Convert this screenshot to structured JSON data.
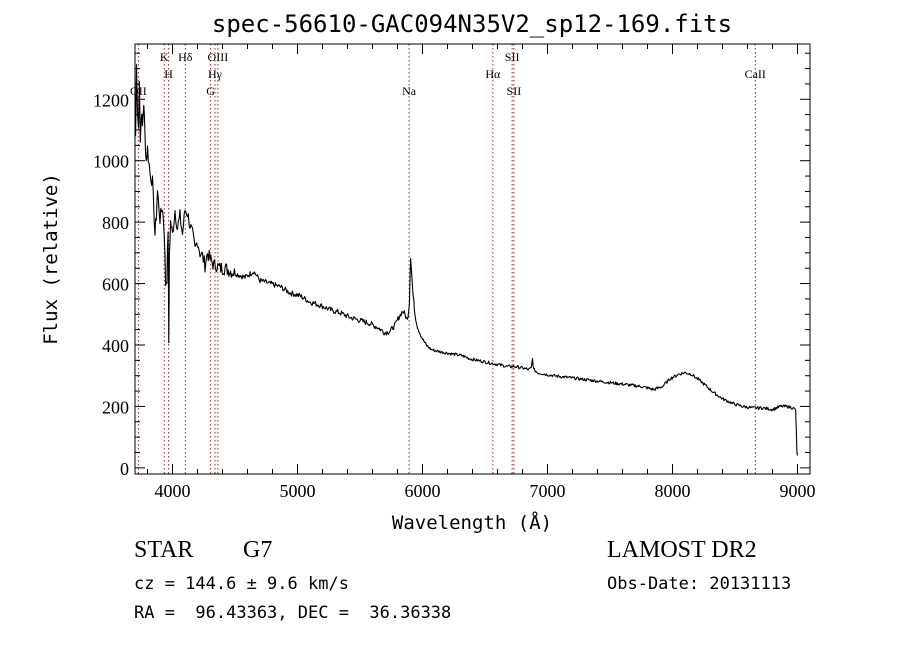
{
  "chart_data": {
    "type": "line",
    "title": "spec-56610-GAC094N35V2_sp12-169.fits",
    "xlabel": "Wavelength (Å)",
    "ylabel": "Flux (relative)",
    "xlim": [
      3700,
      9100
    ],
    "ylim": [
      -20,
      1380
    ],
    "xticks": [
      4000,
      5000,
      6000,
      7000,
      8000,
      9000
    ],
    "xtick_labels": [
      "4000",
      "5000",
      "6000",
      "7000",
      "8000",
      "9000"
    ],
    "yticks": [
      0,
      200,
      400,
      600,
      800,
      1000,
      1200
    ],
    "ytick_labels": [
      "0",
      "200",
      "400",
      "600",
      "800",
      "1000",
      "1200"
    ],
    "grid": false,
    "line_color": "#000000",
    "marker_color": "#b22222",
    "x": [
      3705,
      3712,
      3720,
      3728,
      3735,
      3742,
      3750,
      3760,
      3770,
      3780,
      3790,
      3800,
      3820,
      3840,
      3860,
      3870,
      3880,
      3900,
      3920,
      3935,
      3945,
      3955,
      3965,
      3970,
      3975,
      3985,
      4000,
      4020,
      4040,
      4060,
      4080,
      4100,
      4120,
      4140,
      4160,
      4180,
      4200,
      4220,
      4240,
      4260,
      4280,
      4300,
      4330,
      4350,
      4380,
      4420,
      4470,
      4520,
      4580,
      4650,
      4700,
      4780,
      4860,
      4940,
      5020,
      5100,
      5180,
      5260,
      5340,
      5420,
      5500,
      5580,
      5650,
      5700,
      5740,
      5780,
      5810,
      5840,
      5860,
      5880,
      5895,
      5905,
      5915,
      5925,
      5940,
      5960,
      5980,
      6000,
      6030,
      6070,
      6120,
      6180,
      6250,
      6320,
      6380,
      6440,
      6500,
      6560,
      6620,
      6680,
      6740,
      6800,
      6850,
      6870,
      6880,
      6890,
      6920,
      6980,
      7050,
      7150,
      7250,
      7350,
      7450,
      7550,
      7650,
      7750,
      7850,
      7920,
      7980,
      8050,
      8100,
      8150,
      8200,
      8260,
      8330,
      8400,
      8480,
      8560,
      8640,
      8720,
      8800,
      8860,
      8920,
      8960,
      8985,
      8995,
      9000
    ],
    "y": [
      1080,
      1310,
      1170,
      1120,
      1260,
      1060,
      1160,
      1110,
      1190,
      1080,
      1000,
      1040,
      960,
      930,
      760,
      820,
      900,
      810,
      850,
      760,
      600,
      620,
      780,
      390,
      700,
      800,
      760,
      840,
      780,
      820,
      760,
      840,
      830,
      790,
      760,
      710,
      740,
      700,
      690,
      660,
      700,
      680,
      660,
      660,
      650,
      650,
      640,
      630,
      620,
      640,
      610,
      600,
      590,
      570,
      560,
      540,
      530,
      515,
      505,
      490,
      480,
      470,
      455,
      440,
      445,
      465,
      490,
      510,
      500,
      480,
      540,
      690,
      620,
      560,
      500,
      460,
      440,
      420,
      400,
      385,
      380,
      375,
      370,
      365,
      355,
      350,
      345,
      340,
      335,
      330,
      330,
      325,
      320,
      325,
      355,
      320,
      310,
      305,
      300,
      295,
      290,
      285,
      280,
      275,
      270,
      265,
      255,
      265,
      290,
      305,
      310,
      305,
      290,
      270,
      245,
      225,
      210,
      200,
      195,
      195,
      190,
      200,
      200,
      195,
      190,
      50,
      40
    ]
  },
  "lines": [
    {
      "name": "OII",
      "wavelength": 3727,
      "row": 3
    },
    {
      "name": "H",
      "wavelength": 3969,
      "row": 1
    },
    {
      "name": "K",
      "wavelength": 3934,
      "row": 0
    },
    {
      "name": "Hδ",
      "wavelength": 4102,
      "row": 0
    },
    {
      "name": "G",
      "wavelength": 4305,
      "row": 3
    },
    {
      "name": "Hγ",
      "wavelength": 4340,
      "row": 2
    },
    {
      "name": "OIII",
      "wavelength": 4363,
      "row": 0
    },
    {
      "name": "Na",
      "wavelength": 5893,
      "row": 3
    },
    {
      "name": "Hα",
      "wavelength": 6563,
      "row": 1
    },
    {
      "name": "SII",
      "wavelength": 6717,
      "row": 0
    },
    {
      "name": "SII",
      "wavelength": 6731,
      "row": 3
    },
    {
      "name": "CaII",
      "wavelength": 8662,
      "row": 1
    }
  ],
  "info": {
    "class_label": "STAR",
    "subclass": "G7",
    "survey": "LAMOST DR2",
    "cz": "cz = 144.6 ± 9.6 km/s",
    "obs_date": "Obs-Date: 20131113",
    "radec": "RA =  96.43363, DEC =  36.36338"
  }
}
